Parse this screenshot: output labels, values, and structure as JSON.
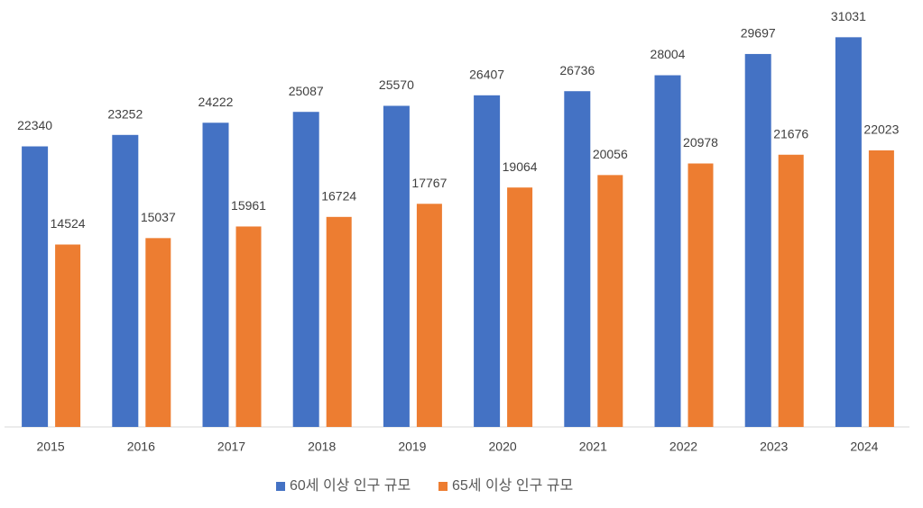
{
  "chart_data": {
    "type": "bar",
    "categories": [
      "2015",
      "2016",
      "2017",
      "2018",
      "2019",
      "2020",
      "2021",
      "2022",
      "2023",
      "2024"
    ],
    "series": [
      {
        "name": "60세 이상 인구 규모",
        "color": "#4472c4",
        "values": [
          22340,
          23252,
          24222,
          25087,
          25570,
          26407,
          26736,
          28004,
          29697,
          31031
        ]
      },
      {
        "name": "65세 이상 인구 규모",
        "color": "#ed7d31",
        "values": [
          14524,
          15037,
          15961,
          16724,
          17767,
          19064,
          20056,
          20978,
          21676,
          22023
        ]
      }
    ],
    "ylim": [
      0,
      35000
    ],
    "legend": "bottom"
  }
}
